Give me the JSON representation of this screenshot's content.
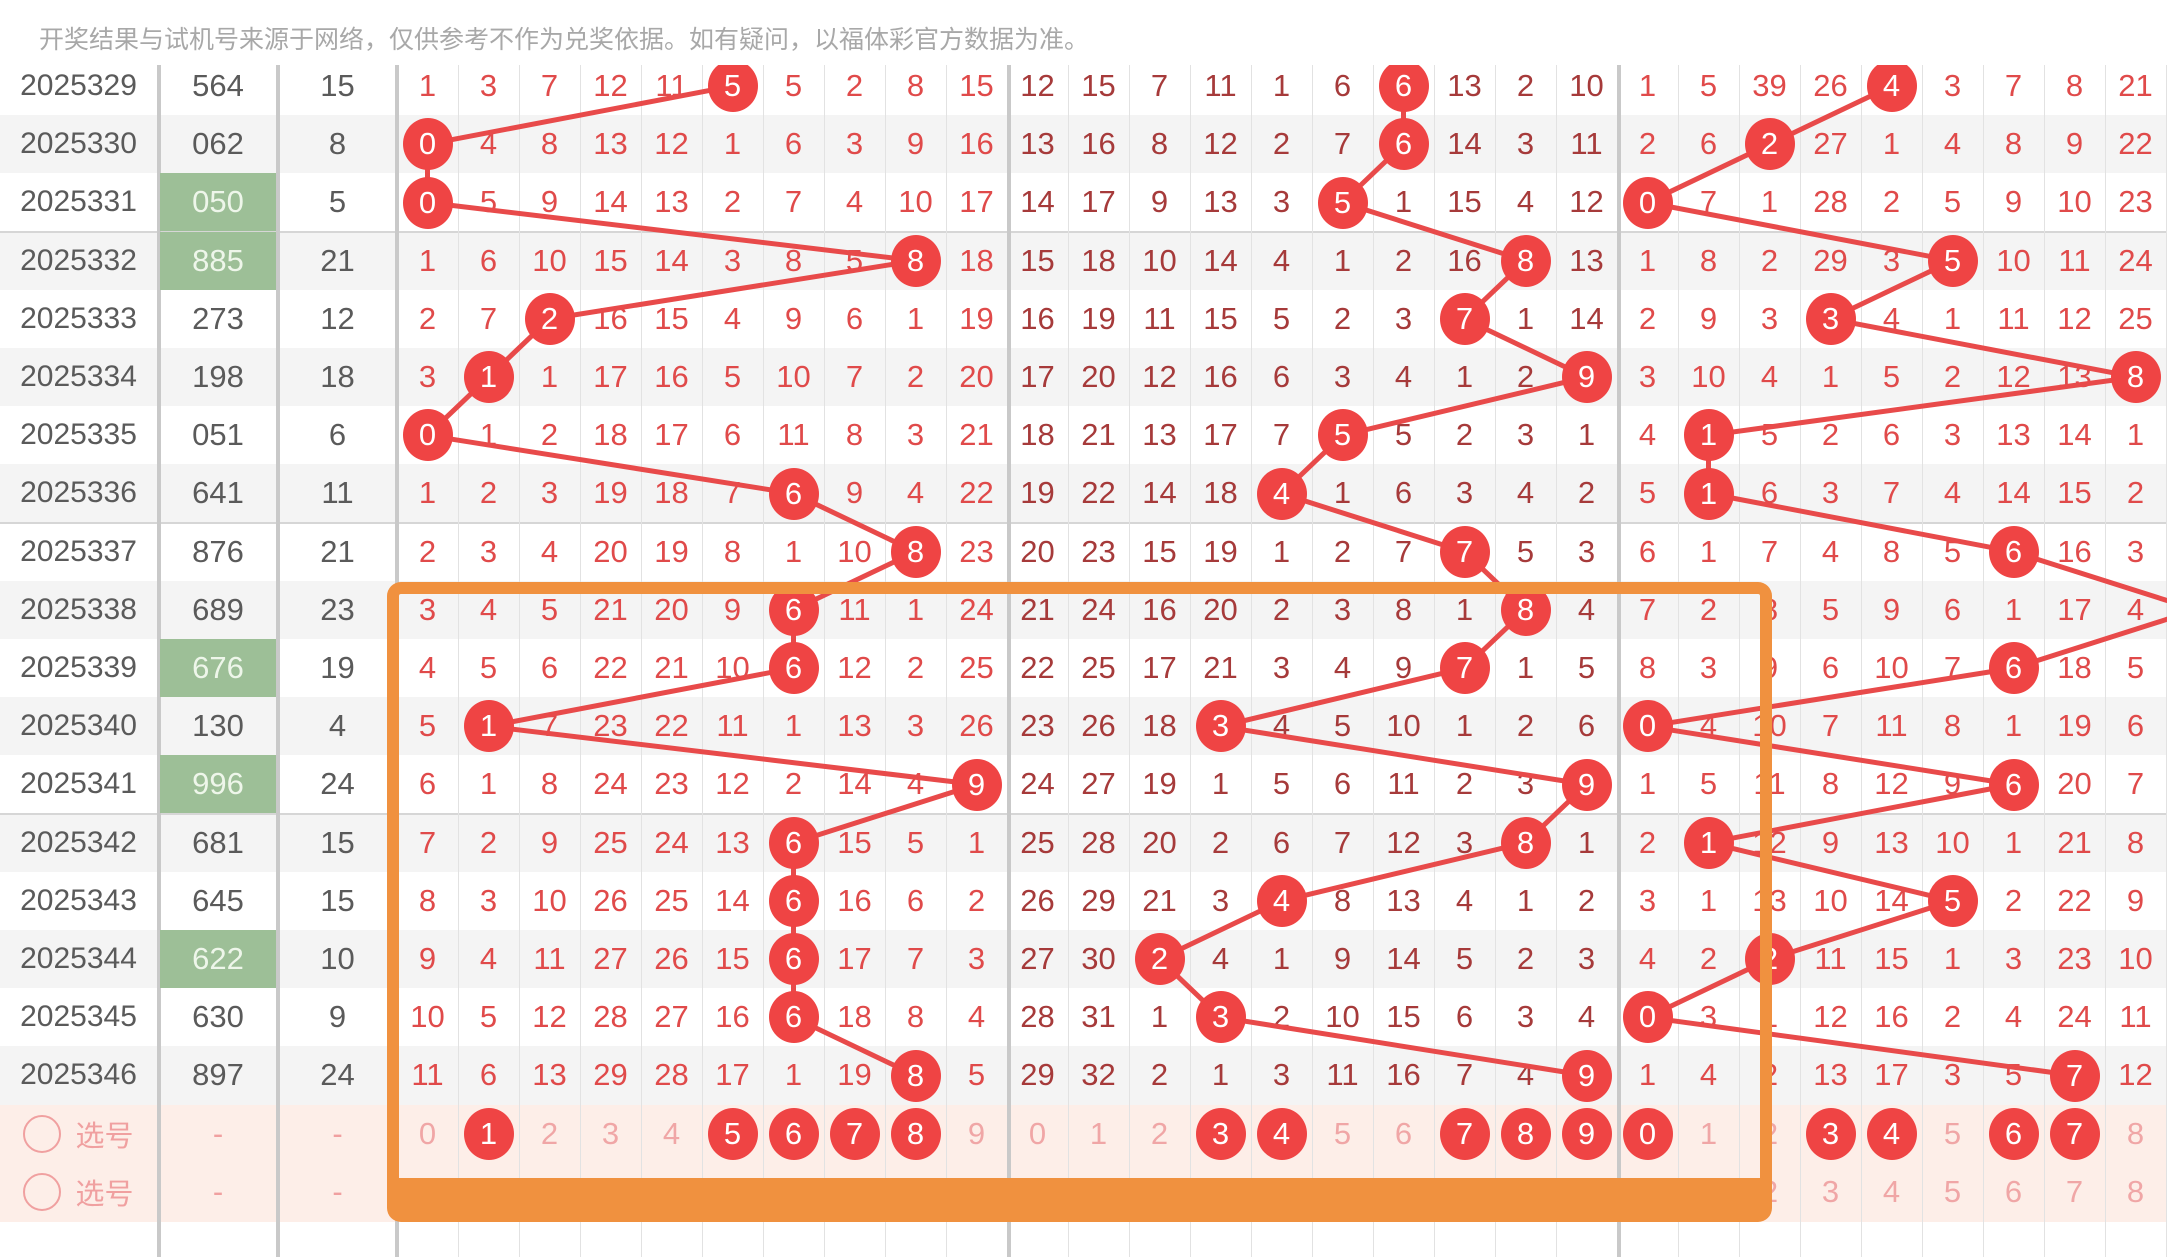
{
  "notice": "开奖结果与试机号来源于网络，仅供参考不作为兑奖依据。如有疑问，以福体彩官方数据为准。",
  "colors": {
    "ball": "#ef4444",
    "line": "#e84a4a",
    "highlight": "#9dbf97",
    "frame": "#f0913f"
  },
  "rows": [
    {
      "issue": "2025329",
      "number": "564",
      "sum": "15",
      "highlight": false,
      "h": [
        1,
        3,
        7,
        12,
        11,
        5,
        5,
        2,
        8,
        15
      ],
      "t": [
        12,
        15,
        7,
        11,
        1,
        6,
        6,
        13,
        2,
        10
      ],
      "u": [
        1,
        5,
        39,
        26,
        4,
        3,
        7,
        8,
        21
      ]
    },
    {
      "issue": "2025330",
      "number": "062",
      "sum": "8",
      "highlight": false,
      "h": [
        0,
        4,
        8,
        13,
        12,
        1,
        6,
        3,
        9,
        16
      ],
      "t": [
        13,
        16,
        8,
        12,
        2,
        7,
        6,
        14,
        3,
        11
      ],
      "u": [
        2,
        6,
        2,
        27,
        1,
        4,
        8,
        9,
        22
      ]
    },
    {
      "issue": "2025331",
      "number": "050",
      "sum": "5",
      "highlight": true,
      "h": [
        0,
        5,
        9,
        14,
        13,
        2,
        7,
        4,
        10,
        17
      ],
      "t": [
        14,
        17,
        9,
        13,
        3,
        5,
        1,
        15,
        4,
        12
      ],
      "u": [
        0,
        7,
        1,
        28,
        2,
        5,
        9,
        10,
        23
      ]
    },
    {
      "issue": "2025332",
      "number": "885",
      "sum": "21",
      "highlight": true,
      "h": [
        1,
        6,
        10,
        15,
        14,
        3,
        8,
        5,
        8,
        18
      ],
      "t": [
        15,
        18,
        10,
        14,
        4,
        1,
        2,
        16,
        8,
        13
      ],
      "u": [
        1,
        8,
        2,
        29,
        3,
        5,
        10,
        11,
        24
      ]
    },
    {
      "issue": "2025333",
      "number": "273",
      "sum": "12",
      "highlight": false,
      "h": [
        2,
        7,
        2,
        16,
        15,
        4,
        9,
        6,
        1,
        19
      ],
      "t": [
        16,
        19,
        11,
        15,
        5,
        2,
        3,
        7,
        1,
        14
      ],
      "u": [
        2,
        9,
        3,
        3,
        4,
        1,
        11,
        12,
        25
      ]
    },
    {
      "issue": "2025334",
      "number": "198",
      "sum": "18",
      "highlight": false,
      "h": [
        3,
        1,
        1,
        17,
        16,
        5,
        10,
        7,
        2,
        20
      ],
      "t": [
        17,
        20,
        12,
        16,
        6,
        3,
        4,
        1,
        2,
        9
      ],
      "u": [
        3,
        10,
        4,
        1,
        5,
        2,
        12,
        13,
        8
      ]
    },
    {
      "issue": "2025335",
      "number": "051",
      "sum": "6",
      "highlight": false,
      "h": [
        0,
        1,
        2,
        18,
        17,
        6,
        11,
        8,
        3,
        21
      ],
      "t": [
        18,
        21,
        13,
        17,
        7,
        5,
        5,
        2,
        3,
        1
      ],
      "u": [
        4,
        1,
        5,
        2,
        6,
        3,
        13,
        14,
        1
      ]
    },
    {
      "issue": "2025336",
      "number": "641",
      "sum": "11",
      "highlight": false,
      "h": [
        1,
        2,
        3,
        19,
        18,
        7,
        6,
        9,
        4,
        22
      ],
      "t": [
        19,
        22,
        14,
        18,
        4,
        1,
        6,
        3,
        4,
        2
      ],
      "u": [
        5,
        1,
        6,
        3,
        7,
        4,
        14,
        15,
        2
      ]
    },
    {
      "issue": "2025337",
      "number": "876",
      "sum": "21",
      "highlight": false,
      "h": [
        2,
        3,
        4,
        20,
        19,
        8,
        1,
        10,
        8,
        23
      ],
      "t": [
        20,
        23,
        15,
        19,
        1,
        2,
        7,
        7,
        5,
        3
      ],
      "u": [
        6,
        1,
        7,
        4,
        8,
        5,
        6,
        16,
        3
      ]
    },
    {
      "issue": "2025338",
      "number": "689",
      "sum": "23",
      "highlight": false,
      "h": [
        3,
        4,
        5,
        21,
        20,
        9,
        6,
        11,
        1,
        24
      ],
      "t": [
        21,
        24,
        16,
        20,
        2,
        3,
        8,
        1,
        8,
        4
      ],
      "u": [
        7,
        2,
        8,
        5,
        9,
        6,
        1,
        17,
        4
      ]
    },
    {
      "issue": "2025339",
      "number": "676",
      "sum": "19",
      "highlight": true,
      "h": [
        4,
        5,
        6,
        22,
        21,
        10,
        6,
        12,
        2,
        25
      ],
      "t": [
        22,
        25,
        17,
        21,
        3,
        4,
        9,
        7,
        1,
        5
      ],
      "u": [
        8,
        3,
        9,
        6,
        10,
        7,
        6,
        18,
        5
      ]
    },
    {
      "issue": "2025340",
      "number": "130",
      "sum": "4",
      "highlight": false,
      "h": [
        5,
        1,
        7,
        23,
        22,
        11,
        1,
        13,
        3,
        26
      ],
      "t": [
        23,
        26,
        18,
        3,
        4,
        5,
        10,
        1,
        2,
        6
      ],
      "u": [
        0,
        4,
        10,
        7,
        11,
        8,
        1,
        19,
        6
      ]
    },
    {
      "issue": "2025341",
      "number": "996",
      "sum": "24",
      "highlight": true,
      "h": [
        6,
        1,
        8,
        24,
        23,
        12,
        2,
        14,
        4,
        9
      ],
      "t": [
        24,
        27,
        19,
        1,
        5,
        6,
        11,
        2,
        3,
        9
      ],
      "u": [
        1,
        5,
        11,
        8,
        12,
        9,
        6,
        20,
        7
      ]
    },
    {
      "issue": "2025342",
      "number": "681",
      "sum": "15",
      "highlight": false,
      "h": [
        7,
        2,
        9,
        25,
        24,
        13,
        6,
        15,
        5,
        1
      ],
      "t": [
        25,
        28,
        20,
        2,
        6,
        7,
        12,
        3,
        8,
        1
      ],
      "u": [
        2,
        1,
        12,
        9,
        13,
        10,
        1,
        21,
        8
      ]
    },
    {
      "issue": "2025343",
      "number": "645",
      "sum": "15",
      "highlight": false,
      "h": [
        8,
        3,
        10,
        26,
        25,
        14,
        6,
        16,
        6,
        2
      ],
      "t": [
        26,
        29,
        21,
        3,
        4,
        8,
        13,
        4,
        1,
        2
      ],
      "u": [
        3,
        1,
        13,
        10,
        14,
        5,
        2,
        22,
        9
      ]
    },
    {
      "issue": "2025344",
      "number": "622",
      "sum": "10",
      "highlight": true,
      "h": [
        9,
        4,
        11,
        27,
        26,
        15,
        6,
        17,
        7,
        3
      ],
      "t": [
        27,
        30,
        2,
        4,
        1,
        9,
        14,
        5,
        2,
        3
      ],
      "u": [
        4,
        2,
        2,
        11,
        15,
        1,
        3,
        23,
        10
      ]
    },
    {
      "issue": "2025345",
      "number": "630",
      "sum": "9",
      "highlight": false,
      "h": [
        10,
        5,
        12,
        28,
        27,
        16,
        6,
        18,
        8,
        4
      ],
      "t": [
        28,
        31,
        1,
        3,
        2,
        10,
        15,
        6,
        3,
        4
      ],
      "u": [
        0,
        3,
        1,
        12,
        16,
        2,
        4,
        24,
        11
      ]
    },
    {
      "issue": "2025346",
      "number": "897",
      "sum": "24",
      "highlight": false,
      "h": [
        11,
        6,
        13,
        29,
        28,
        17,
        1,
        19,
        8,
        5
      ],
      "t": [
        29,
        32,
        2,
        1,
        3,
        11,
        16,
        7,
        4,
        9
      ],
      "u": [
        1,
        4,
        2,
        13,
        17,
        3,
        5,
        7,
        12
      ]
    }
  ],
  "pick_rows": [
    {
      "label": "选号",
      "number": "-",
      "sum": "-",
      "digits": [
        "0",
        "1",
        "2",
        "3",
        "4",
        "5",
        "6",
        "7",
        "8",
        "9"
      ],
      "selected": {
        "h": [
          1,
          5,
          6,
          7,
          8
        ],
        "t": [
          3,
          4,
          7,
          8,
          9
        ],
        "u": [
          0,
          3,
          4,
          6,
          7
        ]
      }
    },
    {
      "label": "选号",
      "number": "-",
      "sum": "-",
      "digits": [
        "0",
        "1",
        "2",
        "3",
        "4",
        "5",
        "6",
        "7",
        "8",
        "9"
      ],
      "selected": {
        "h": [],
        "t": [],
        "u": []
      }
    }
  ]
}
